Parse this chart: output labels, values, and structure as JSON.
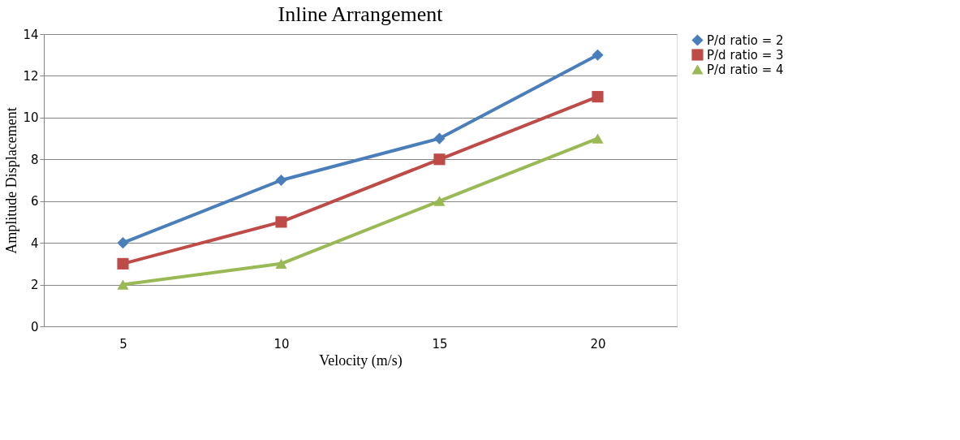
{
  "chart_data": {
    "type": "line",
    "title": "Inline Arrangement",
    "xlabel": "Velocity (m/s)",
    "ylabel": "Amplitude Displacement",
    "categories": [
      "5",
      "10",
      "15",
      "20"
    ],
    "series": [
      {
        "name": "P/d ratio = 2",
        "color": "#4a7ebb",
        "marker": "diamond",
        "values": [
          4,
          7,
          9,
          13
        ]
      },
      {
        "name": "P/d ratio = 3",
        "color": "#be4b48",
        "marker": "square",
        "values": [
          3,
          5,
          8,
          11
        ]
      },
      {
        "name": "P/d ratio = 4",
        "color": "#98b954",
        "marker": "triangle",
        "values": [
          2,
          3,
          6,
          9
        ]
      }
    ],
    "ylim": [
      0,
      14
    ],
    "yticks": [
      0,
      2,
      4,
      6,
      8,
      10,
      12,
      14
    ],
    "grid": "y",
    "legend": "right",
    "line_style": "solid"
  }
}
